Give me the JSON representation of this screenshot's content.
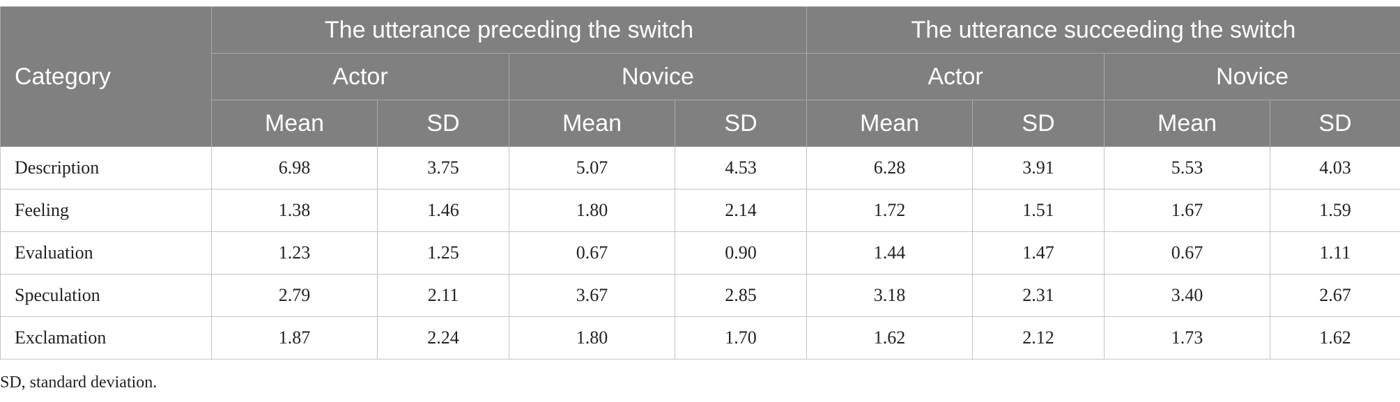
{
  "table": {
    "category_header": "Category",
    "groups": [
      "The utterance preceding the switch",
      "The utterance succeeding the switch"
    ],
    "subgroups": [
      "Actor",
      "Novice",
      "Actor",
      "Novice"
    ],
    "stats": [
      "Mean",
      "SD",
      "Mean",
      "SD",
      "Mean",
      "SD",
      "Mean",
      "SD"
    ],
    "rows": [
      {
        "label": "Description",
        "values": [
          "6.98",
          "3.75",
          "5.07",
          "4.53",
          "6.28",
          "3.91",
          "5.53",
          "4.03"
        ]
      },
      {
        "label": "Feeling",
        "values": [
          "1.38",
          "1.46",
          "1.80",
          "2.14",
          "1.72",
          "1.51",
          "1.67",
          "1.59"
        ]
      },
      {
        "label": "Evaluation",
        "values": [
          "1.23",
          "1.25",
          "0.67",
          "0.90",
          "1.44",
          "1.47",
          "0.67",
          "1.11"
        ]
      },
      {
        "label": "Speculation",
        "values": [
          "2.79",
          "2.11",
          "3.67",
          "2.85",
          "3.18",
          "2.31",
          "3.40",
          "2.67"
        ]
      },
      {
        "label": "Exclamation",
        "values": [
          "1.87",
          "2.24",
          "1.80",
          "1.70",
          "1.62",
          "2.12",
          "1.73",
          "1.62"
        ]
      }
    ]
  },
  "footnote": "SD, standard deviation.",
  "colors": {
    "header_bg": "#808080",
    "header_text": "#ffffff",
    "border": "#c3c3c3"
  }
}
